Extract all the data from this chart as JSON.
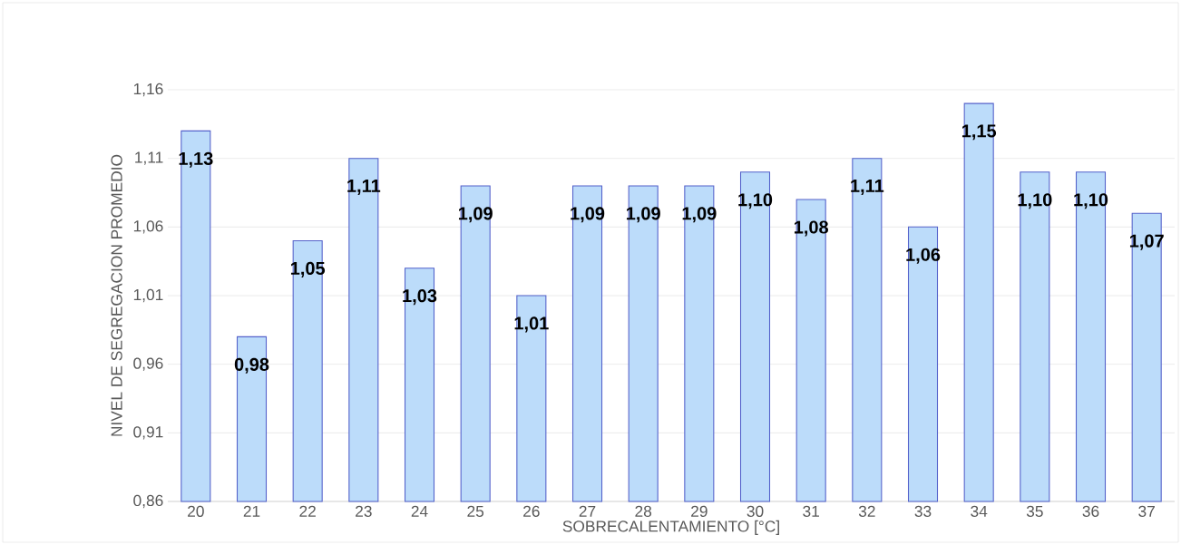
{
  "chart_data": {
    "type": "bar",
    "xlabel": "SOBRECALENTAMIENTO [°C]",
    "ylabel": "NIVEL DE SEGREGACION PROMEDIO",
    "categories": [
      "20",
      "21",
      "22",
      "23",
      "24",
      "25",
      "26",
      "27",
      "28",
      "29",
      "30",
      "31",
      "32",
      "33",
      "34",
      "35",
      "36",
      "37"
    ],
    "values": [
      1.13,
      0.98,
      1.05,
      1.11,
      1.03,
      1.09,
      1.01,
      1.09,
      1.09,
      1.09,
      1.1,
      1.08,
      1.11,
      1.06,
      1.15,
      1.1,
      1.1,
      1.07
    ],
    "value_labels": [
      "1,13",
      "0,98",
      "1,05",
      "1,11",
      "1,03",
      "1,09",
      "1,01",
      "1,09",
      "1,09",
      "1,09",
      "1,10",
      "1,08",
      "1,11",
      "1,06",
      "1,15",
      "1,10",
      "1,10",
      "1,07"
    ],
    "color": "#bcdcfa",
    "ylim": [
      0.86,
      1.16
    ],
    "yticks": [
      {
        "value": 0.86,
        "label": "0,86"
      },
      {
        "value": 0.91,
        "label": "0,91"
      },
      {
        "value": 0.96,
        "label": "0,96"
      },
      {
        "value": 1.01,
        "label": "1,01"
      },
      {
        "value": 1.06,
        "label": "1,06"
      },
      {
        "value": 1.11,
        "label": "1,11"
      },
      {
        "value": 1.16,
        "label": "1,16"
      }
    ],
    "grid": "y"
  }
}
